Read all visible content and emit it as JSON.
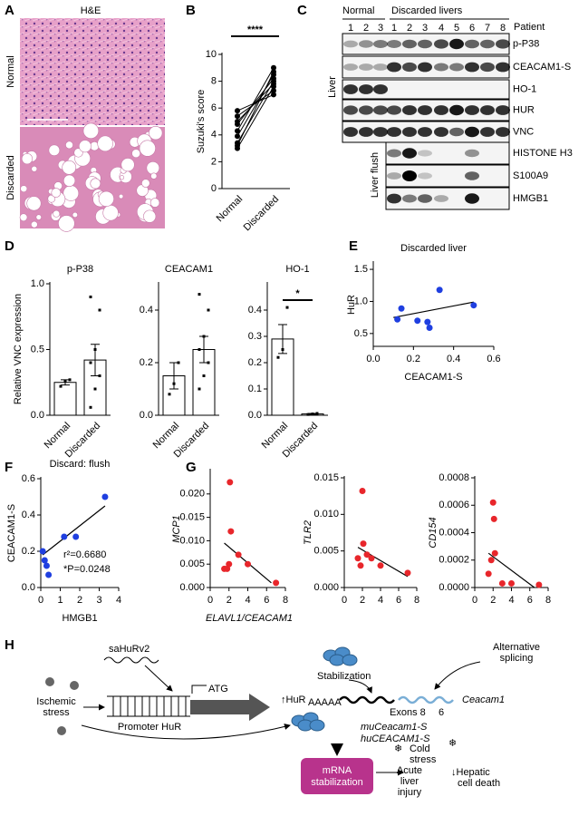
{
  "panel_labels": [
    "A",
    "B",
    "C",
    "D",
    "E",
    "F",
    "G",
    "H"
  ],
  "he": {
    "title": "H&E",
    "rows": [
      "Normal",
      "Discarded"
    ]
  },
  "blot": {
    "groups": [
      "Normal",
      "Discarded livers"
    ],
    "patient_label": "Patient",
    "lanes": [
      "1",
      "2",
      "3",
      "1",
      "2",
      "3",
      "4",
      "5",
      "6",
      "7",
      "8"
    ],
    "rows": [
      "p-P38",
      "CEACAM1-S",
      "HO-1",
      "HUR",
      "VNC",
      "HISTONE H3",
      "S100A9",
      "HMGB1"
    ],
    "sections": [
      "Liver",
      "Liver flush"
    ]
  },
  "chart_data": [
    {
      "type": "paired",
      "y_label": "Suzuki's score",
      "categories": [
        "Normal",
        "Discarded"
      ],
      "values": [
        [
          3.0,
          3.4,
          3.9,
          4.3,
          4.8,
          5.0,
          5.4,
          5.8,
          3.2
        ],
        [
          7.6,
          8.0,
          8.5,
          9.0,
          8.2,
          7.8,
          7.3,
          7.0,
          8.7
        ]
      ],
      "ylim": [
        0,
        10
      ],
      "yticks": [
        0,
        2,
        4,
        6,
        8,
        10
      ],
      "annotation": "****",
      "color": "#000000"
    },
    {
      "type": "bar",
      "title": "p-P38",
      "y_label": "Relative VNC expression",
      "categories": [
        "Normal",
        "Discarded"
      ],
      "values": [
        0.25,
        0.42
      ],
      "errors": [
        0.02,
        0.12
      ],
      "points": [
        [
          0.22,
          0.26,
          0.27
        ],
        [
          0.06,
          0.2,
          0.3,
          0.4,
          0.5,
          0.8,
          0.9
        ]
      ],
      "ylim": [
        0,
        1
      ],
      "yticks": [
        {
          "value": 0,
          "label": "0.0"
        },
        0.5,
        {
          "value": 1,
          "label": "1.0"
        }
      ],
      "color": "#ffffff"
    },
    {
      "type": "bar",
      "title": "CEACAM1",
      "categories": [
        "Normal",
        "Discarded"
      ],
      "values": [
        0.15,
        0.25
      ],
      "errors": [
        0.05,
        0.05
      ],
      "points": [
        [
          0.08,
          0.12,
          0.2
        ],
        [
          0.1,
          0.15,
          0.2,
          0.25,
          0.3,
          0.4,
          0.46
        ]
      ],
      "ylim": [
        0,
        0.5
      ],
      "yticks": [
        {
          "value": 0,
          "label": "0.0"
        },
        0.2,
        0.4
      ],
      "color": "#ffffff"
    },
    {
      "type": "bar",
      "title": "HO-1",
      "categories": [
        "Normal",
        "Discarded"
      ],
      "values": [
        0.29,
        0.005
      ],
      "errors": [
        0.055,
        0.002
      ],
      "points": [
        [
          0.22,
          0.25,
          0.41
        ],
        [
          0.003,
          0.005,
          0.007
        ]
      ],
      "ylim": [
        0,
        0.5
      ],
      "yticks": [
        {
          "value": 0,
          "label": "0.0"
        },
        0.1,
        0.2,
        0.3,
        0.4
      ],
      "annotation": "*",
      "color": "#ffffff"
    },
    {
      "type": "scatter",
      "title": "Discarded liver",
      "x_label": "CEACAM1-S",
      "y_label": "HuR",
      "x": [
        0.12,
        0.14,
        0.22,
        0.27,
        0.28,
        0.33,
        0.5
      ],
      "y": [
        0.72,
        0.89,
        0.7,
        0.68,
        0.59,
        1.18,
        0.94
      ],
      "fit": {
        "x": [
          0.1,
          0.5
        ],
        "y": [
          0.75,
          0.99
        ]
      },
      "xlim": [
        0,
        0.6
      ],
      "xticks": [
        {
          "value": 0,
          "label": "0.0"
        },
        0.2,
        0.4,
        0.6
      ],
      "ylim": [
        0.3,
        1.6
      ],
      "yticks": [
        0.5,
        {
          "value": 1,
          "label": "1.0"
        },
        1.5
      ],
      "color": "#1f3fe0"
    },
    {
      "type": "scatter",
      "title": "Discard: flush",
      "x_label": "HMGB1",
      "y_label": "CEACAM1-S",
      "x": [
        0.1,
        0.2,
        0.3,
        0.4,
        1.2,
        1.8,
        3.3
      ],
      "y": [
        0.2,
        0.15,
        0.12,
        0.07,
        0.28,
        0.28,
        0.5
      ],
      "fit": {
        "x": [
          0.1,
          3.3
        ],
        "y": [
          0.18,
          0.45
        ]
      },
      "xlim": [
        0,
        4
      ],
      "xticks": [
        0,
        1,
        2,
        3,
        4
      ],
      "ylim": [
        0,
        0.6
      ],
      "yticks": [
        {
          "value": 0,
          "label": "0.0"
        },
        0.2,
        0.4,
        0.6
      ],
      "annotations": [
        "r²=0.6680",
        "*P=0.0248"
      ],
      "color": "#1f3fe0"
    },
    {
      "type": "scatter",
      "x_label": "ELAVL1/CEACAM1",
      "y_label": "MCP1",
      "italic_labels": true,
      "x": [
        1.5,
        1.8,
        2.0,
        2.1,
        2.2,
        3.0,
        4.0,
        7.0
      ],
      "y": [
        0.004,
        0.004,
        0.005,
        0.0225,
        0.012,
        0.007,
        0.005,
        0.001
      ],
      "fit": {
        "x": [
          1.5,
          6.5
        ],
        "y": [
          0.0095,
          0.001
        ]
      },
      "xlim": [
        0,
        8
      ],
      "xticks": [
        0,
        2,
        4,
        6,
        8
      ],
      "ylim": [
        0,
        0.025
      ],
      "yticks": [
        {
          "value": 0,
          "label": "0.000"
        },
        0.005,
        {
          "value": 0.01,
          "label": "0.010"
        },
        0.015,
        {
          "value": 0.02,
          "label": "0.020"
        }
      ],
      "color": "#e8262b"
    },
    {
      "type": "scatter",
      "y_label": "TLR2",
      "italic_labels": true,
      "x": [
        1.5,
        1.8,
        2.0,
        2.1,
        2.5,
        3.0,
        4.0,
        7.0
      ],
      "y": [
        0.004,
        0.003,
        0.0132,
        0.006,
        0.0045,
        0.004,
        0.003,
        0.002
      ],
      "fit": {
        "x": [
          1.5,
          7.0
        ],
        "y": [
          0.0055,
          0.0015
        ]
      },
      "xlim": [
        0,
        8
      ],
      "xticks": [
        0,
        2,
        4,
        6,
        8
      ],
      "ylim": [
        0,
        0.015
      ],
      "yticks": [
        {
          "value": 0,
          "label": "0.000"
        },
        0.005,
        {
          "value": 0.01,
          "label": "0.010"
        },
        0.015
      ],
      "color": "#e8262b"
    },
    {
      "type": "scatter",
      "y_label": "CD154",
      "italic_labels": true,
      "x": [
        1.5,
        1.8,
        2.0,
        2.1,
        2.2,
        3.0,
        4.0,
        7.0
      ],
      "y": [
        0.0001,
        0.0002,
        0.00062,
        0.0005,
        0.00025,
        3e-05,
        3e-05,
        2e-05
      ],
      "fit": {
        "x": [
          1.5,
          6.5
        ],
        "y": [
          0.00025,
          0
        ]
      },
      "xlim": [
        0,
        8
      ],
      "xticks": [
        0,
        2,
        4,
        6,
        8
      ],
      "ylim": [
        0,
        0.0008
      ],
      "yticks": [
        {
          "value": 0,
          "label": "0.0000"
        },
        0.0002,
        0.0004,
        0.0006,
        {
          "value": 0.0008,
          "label": "0.0008"
        }
      ],
      "color": "#e8262b"
    }
  ],
  "diagram": {
    "sahurv2": "saHuRv2",
    "atg": "ATG",
    "stress": [
      "Ischemic",
      "stress"
    ],
    "promoter": "Promoter HuR",
    "hur": "↑HuR",
    "stabilization": "Stabilization",
    "splicing": [
      "Alternative",
      "splicing"
    ],
    "polya": "AAAAA",
    "exons": [
      "Exons 8",
      "6"
    ],
    "gene": "Ceacam1",
    "transcripts": [
      "muCeacam1-S",
      "huCEACAM1-S"
    ],
    "box": [
      "mRNA",
      "stabilization"
    ],
    "cold": [
      "Cold",
      "stress"
    ],
    "injury": [
      "Acute",
      "liver",
      "injury"
    ],
    "death": [
      "↓Hepatic",
      "cell death"
    ]
  }
}
